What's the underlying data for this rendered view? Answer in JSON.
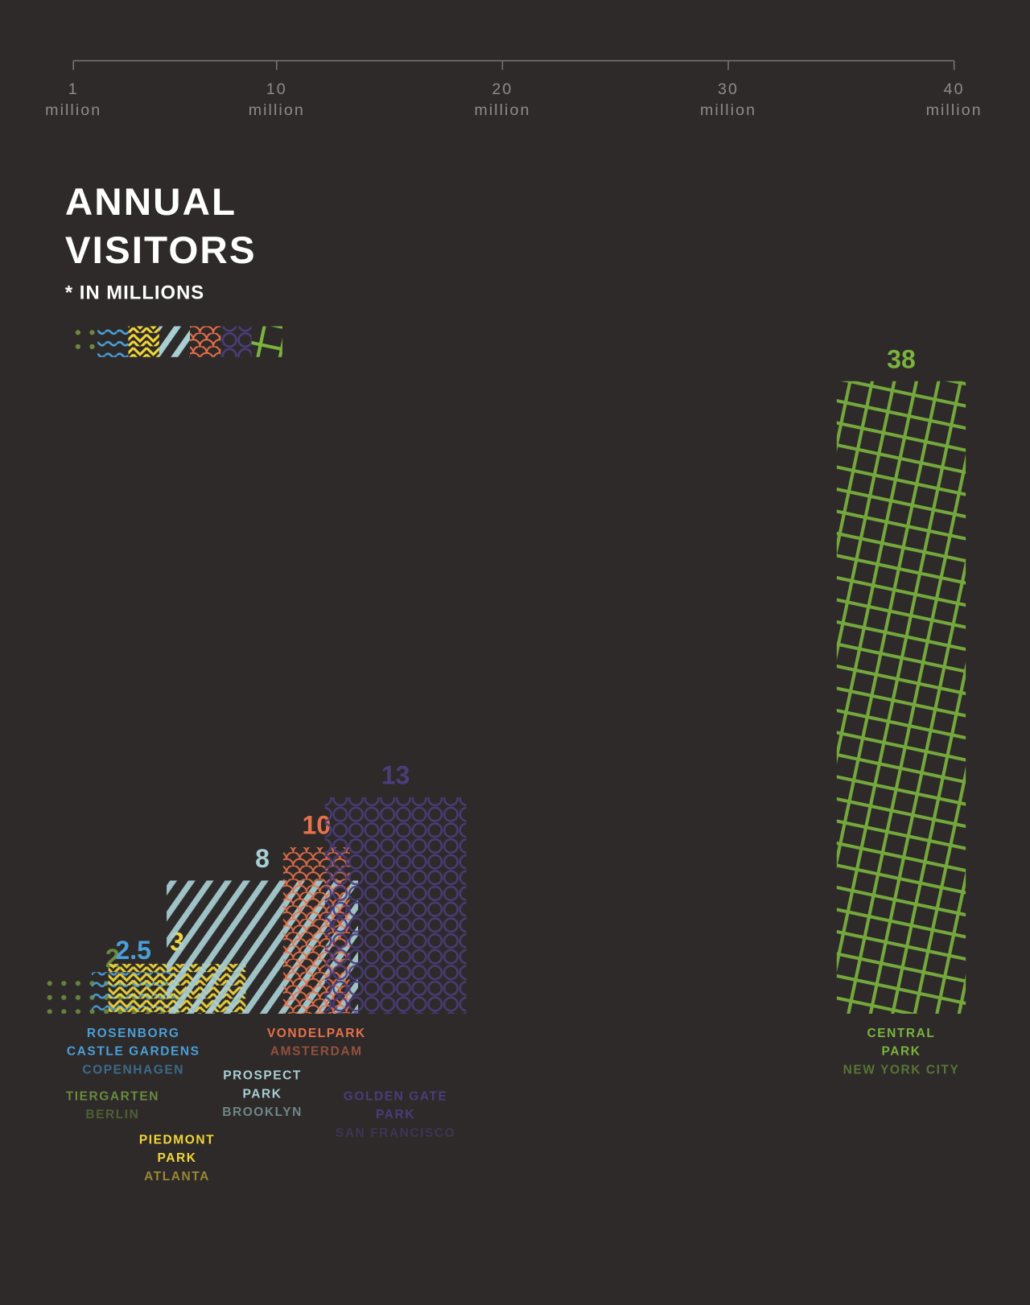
{
  "chart_data": {
    "type": "bar",
    "title_lines": [
      "ANNUAL",
      "VISITORS"
    ],
    "subtitle": "* IN MILLIONS",
    "xlim": [
      1,
      40
    ],
    "xticks": [
      1,
      10,
      20,
      30,
      40
    ],
    "xtick_unit": "million",
    "series": [
      {
        "name_lines": [
          "TIERGARTEN"
        ],
        "city": "BERLIN",
        "value": 2,
        "color": "#6b8a3f",
        "pattern": "dots"
      },
      {
        "name_lines": [
          "ROSENBORG",
          "CASTLE GARDENS"
        ],
        "city": "COPENHAGEN",
        "value": 2.5,
        "color": "#4a9fd8",
        "pattern": "waves"
      },
      {
        "name_lines": [
          "PIEDMONT",
          "PARK"
        ],
        "city": "ATLANTA",
        "value": 3,
        "color": "#f2d63a",
        "pattern": "zigzag"
      },
      {
        "name_lines": [
          "PROSPECT",
          "PARK"
        ],
        "city": "BROOKLYN",
        "value": 8,
        "color": "#a8cfd4",
        "pattern": "stripes"
      },
      {
        "name_lines": [
          "VONDELPARK"
        ],
        "city": "AMSTERDAM",
        "value": 10,
        "color": "#e8704a",
        "pattern": "scales"
      },
      {
        "name_lines": [
          "GOLDEN GATE",
          "PARK"
        ],
        "city": "SAN FRANCISCO",
        "value": 13,
        "color": "#4a3d7a",
        "pattern": "circles"
      },
      {
        "name_lines": [
          "CENTRAL",
          "PARK"
        ],
        "city": "NEW YORK CITY",
        "value": 38,
        "color": "#7ab33e",
        "pattern": "grid"
      }
    ]
  }
}
